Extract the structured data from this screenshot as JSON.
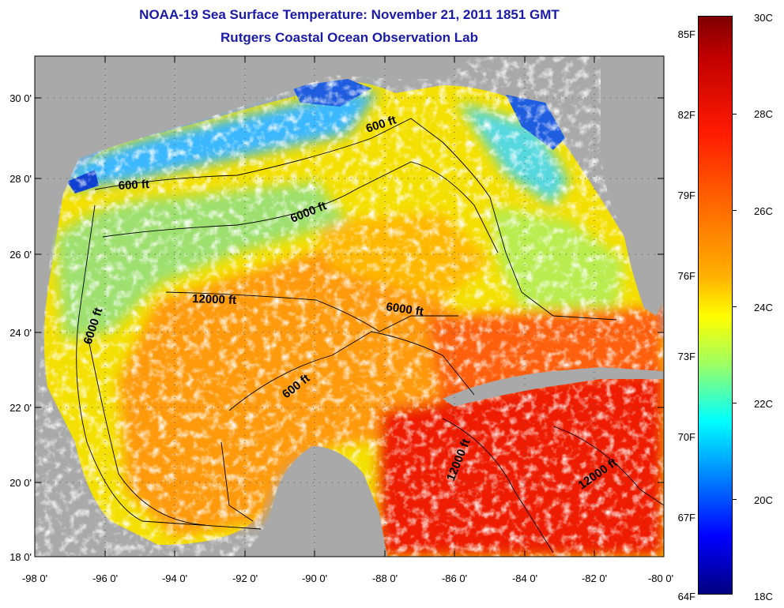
{
  "title": {
    "line1": "NOAA-19 Sea Surface Temperature:  November 21, 2011 1851 GMT",
    "line2": "Rutgers Coastal Ocean Observation Lab"
  },
  "map": {
    "lat_labels": [
      "30 0'",
      "28 0'",
      "26 0'",
      "24 0'",
      "22 0'",
      "20 0'",
      "18 0'"
    ],
    "lon_labels": [
      "-98 0'",
      "-96 0'",
      "-94 0'",
      "-92 0'",
      "-90 0'",
      "-88 0'",
      "-86 0'",
      "-84 0'",
      "-82 0'",
      "-80 0'"
    ],
    "contour_labels": [
      "600 ft",
      "600 ft",
      "6000 ft",
      "12000 ft",
      "6000 ft",
      "6000 ft",
      "600 ft",
      "12000 ft",
      "12000 ft"
    ],
    "colors": {
      "land": "#a9a9a9",
      "cloud": "#ffffff"
    }
  },
  "colorbar": {
    "fahrenheit": [
      "85F",
      "82F",
      "79F",
      "76F",
      "73F",
      "70F",
      "67F",
      "64F"
    ],
    "celsius": [
      "30C",
      "28C",
      "26C",
      "24C",
      "22C",
      "20C",
      "18C"
    ]
  }
}
